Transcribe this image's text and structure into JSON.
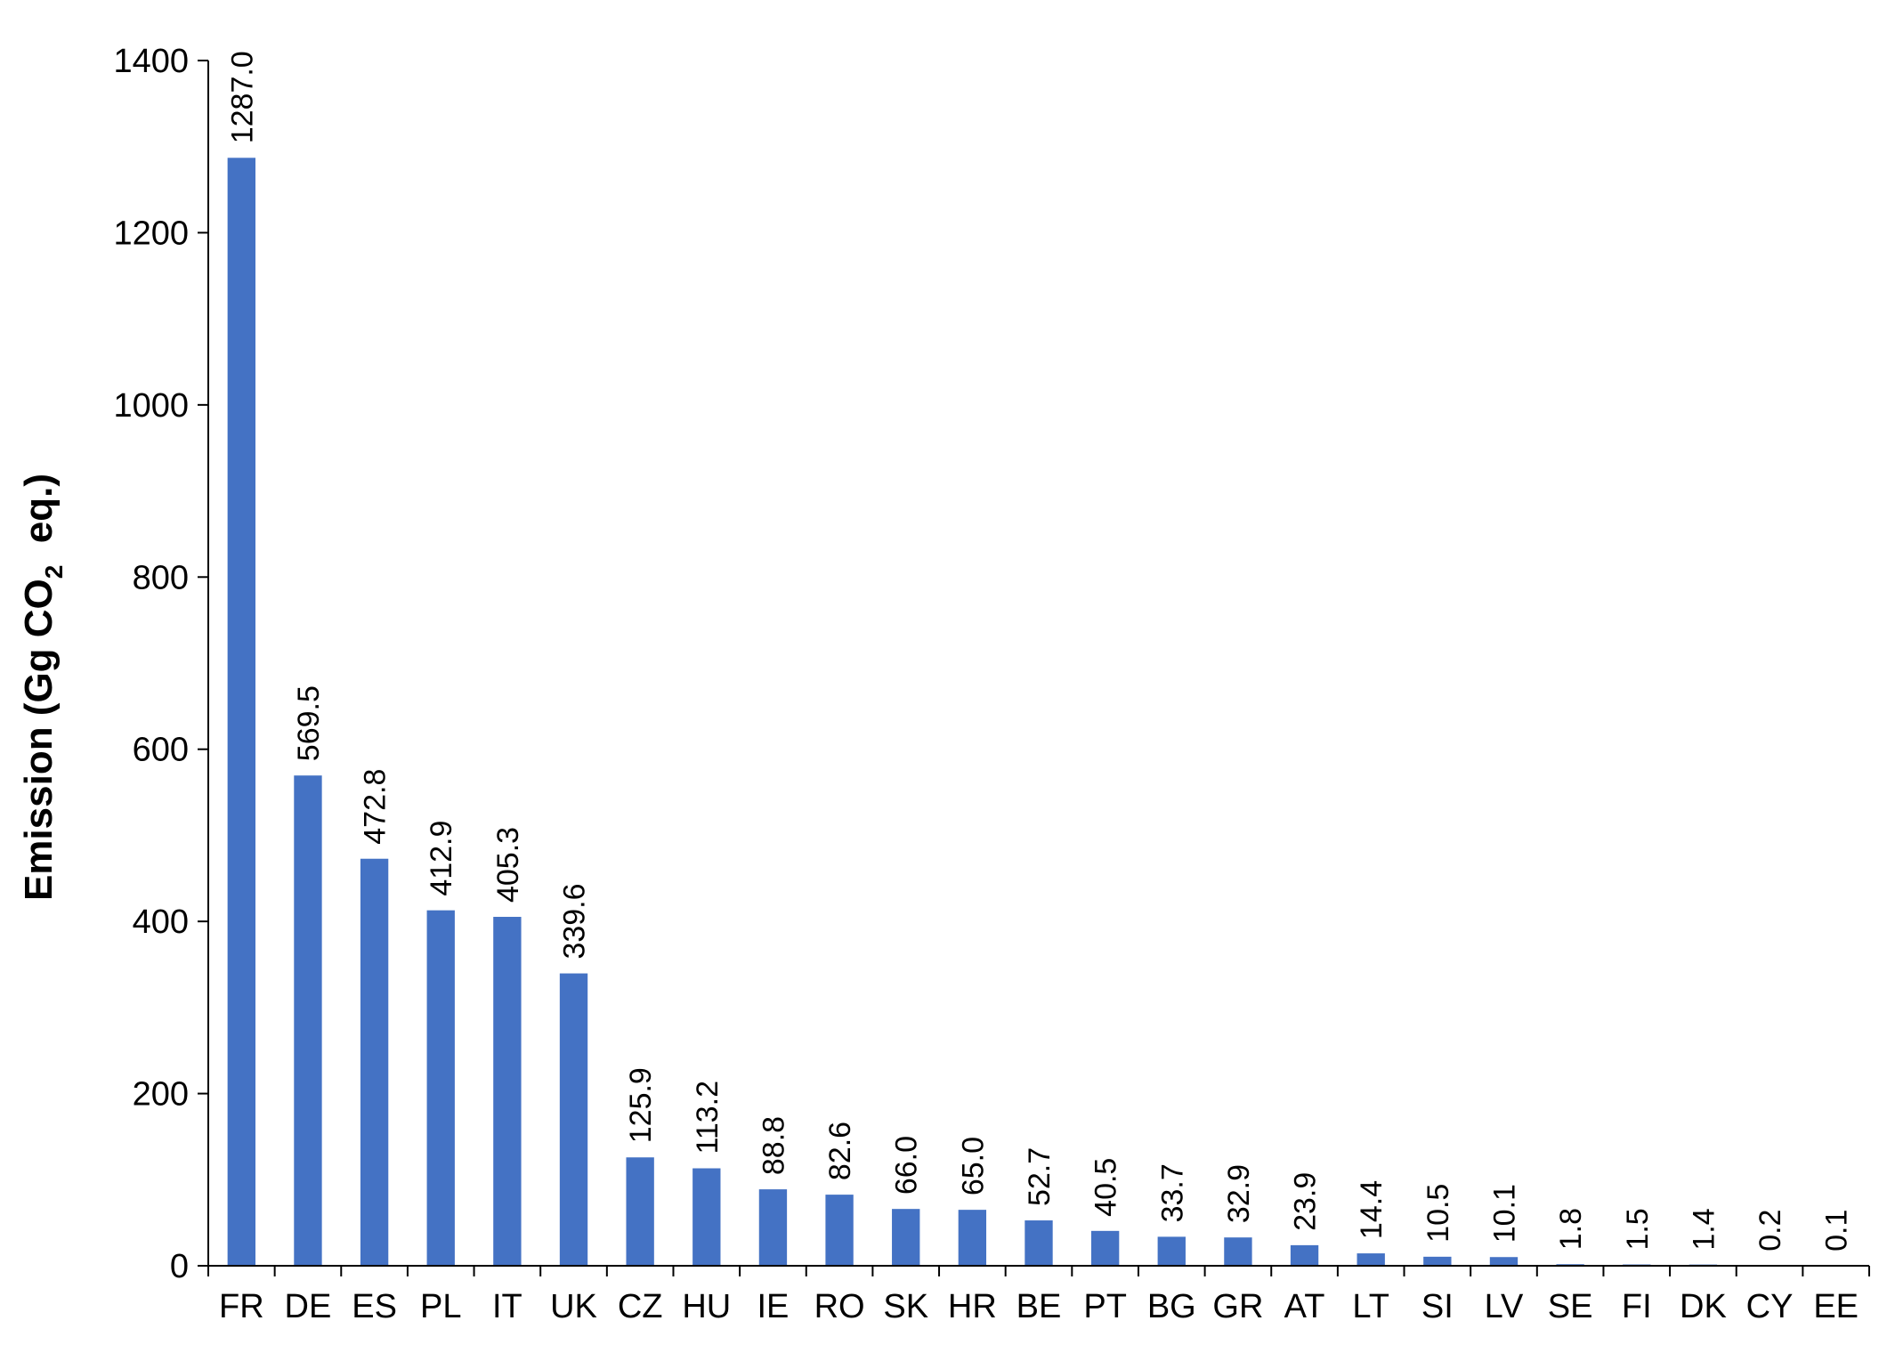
{
  "chart_data": {
    "type": "bar",
    "title": "",
    "xlabel": "",
    "ylabel": {
      "prefix": "Emission (Gg CO",
      "subscript": "2",
      "suffix": "  eq.)"
    },
    "ylim": [
      0,
      1400
    ],
    "yticks": [
      0,
      200,
      400,
      600,
      800,
      1000,
      1200,
      1400
    ],
    "grid": false,
    "legend": "none",
    "bar_color": "#4472C4",
    "categories": [
      "FR",
      "DE",
      "ES",
      "PL",
      "IT",
      "UK",
      "CZ",
      "HU",
      "IE",
      "RO",
      "SK",
      "HR",
      "BE",
      "PT",
      "BG",
      "GR",
      "AT",
      "LT",
      "SI",
      "LV",
      "SE",
      "FI",
      "DK",
      "CY",
      "EE"
    ],
    "values": [
      1287.0,
      569.5,
      472.8,
      412.9,
      405.3,
      339.6,
      125.9,
      113.2,
      88.8,
      82.6,
      66.0,
      65.0,
      52.7,
      40.5,
      33.7,
      32.9,
      23.9,
      14.4,
      10.5,
      10.1,
      1.8,
      1.5,
      1.4,
      0.2,
      0.1
    ],
    "data_labels": [
      "1287.0",
      "569.5",
      "472.8",
      "412.9",
      "405.3",
      "339.6",
      "125.9",
      "113.2",
      "88.8",
      "82.6",
      "66.0",
      "65.0",
      "52.7",
      "40.5",
      "33.7",
      "32.9",
      "23.9",
      "14.4",
      "10.5",
      "10.1",
      "1.8",
      "1.5",
      "1.4",
      "0.2",
      "0.1"
    ]
  }
}
